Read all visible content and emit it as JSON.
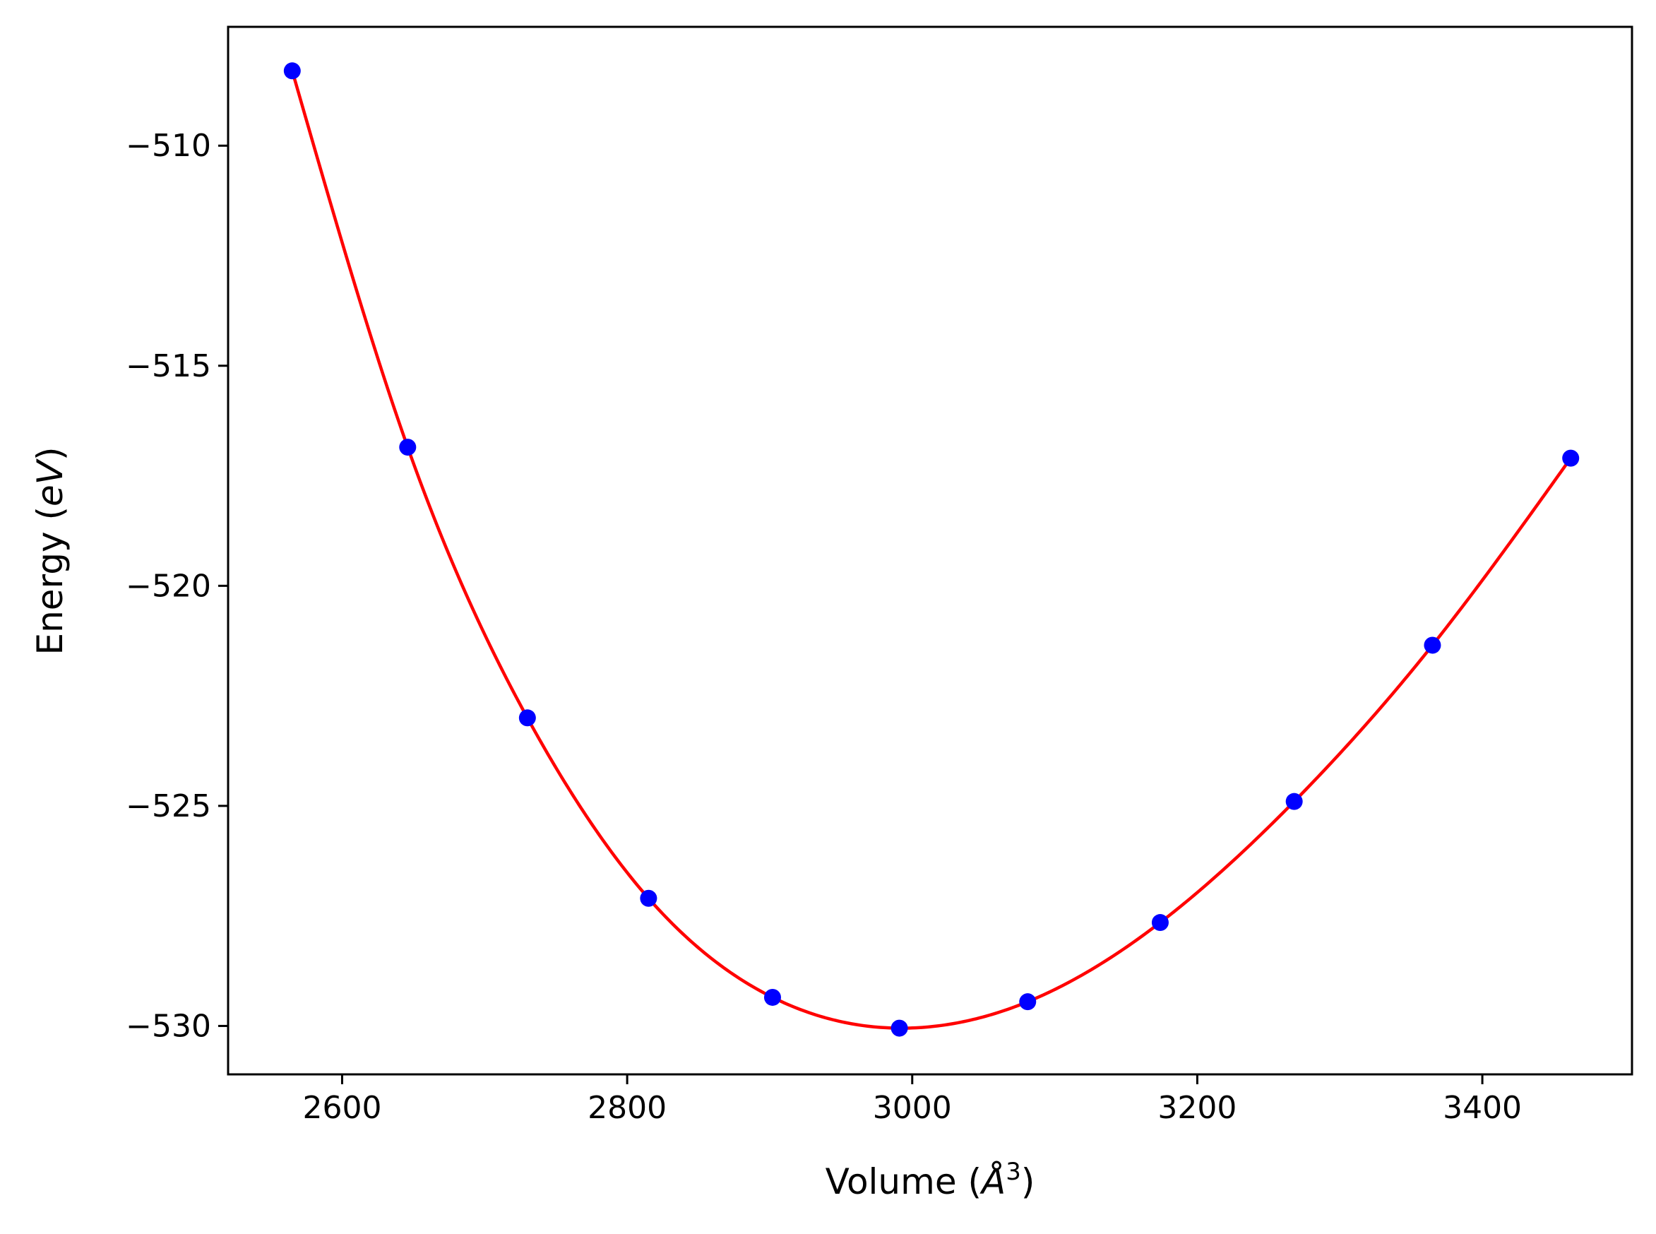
{
  "chart_data": {
    "type": "scatter",
    "xlabel_prefix": "Volume (",
    "xlabel_unit_base": "Å",
    "xlabel_unit_sup": "3",
    "xlabel_suffix": ")",
    "ylabel_prefix": "Energy (",
    "ylabel_unit": "eV",
    "ylabel_suffix": ")",
    "xlim": [
      2520,
      3505
    ],
    "ylim": [
      -531.1,
      -507.3
    ],
    "x_ticks": [
      2600,
      2800,
      3000,
      3200,
      3400
    ],
    "x_tick_labels": [
      "2600",
      "2800",
      "3000",
      "3200",
      "3400"
    ],
    "y_ticks": [
      -510,
      -515,
      -520,
      -525,
      -530
    ],
    "y_tick_labels": [
      "−510",
      "−515",
      "−520",
      "−525",
      "−530"
    ],
    "grid": false,
    "series": [
      {
        "kind": "points",
        "color": "#0000ff",
        "x": [
          2565,
          2646,
          2730,
          2815,
          2902,
          2991,
          3081,
          3174,
          3268,
          3365,
          3462
        ],
        "y": [
          -508.3,
          -516.85,
          -523.0,
          -527.1,
          -529.35,
          -530.05,
          -529.45,
          -527.65,
          -524.9,
          -521.35,
          -517.1
        ]
      },
      {
        "kind": "line",
        "color": "#ff0000",
        "x": [
          2565,
          2646,
          2730,
          2815,
          2902,
          2991,
          3081,
          3174,
          3268,
          3365,
          3462
        ],
        "y": [
          -508.3,
          -516.85,
          -523.0,
          -527.1,
          -529.35,
          -530.05,
          -529.45,
          -527.65,
          -524.9,
          -521.35,
          -517.1
        ]
      }
    ]
  }
}
